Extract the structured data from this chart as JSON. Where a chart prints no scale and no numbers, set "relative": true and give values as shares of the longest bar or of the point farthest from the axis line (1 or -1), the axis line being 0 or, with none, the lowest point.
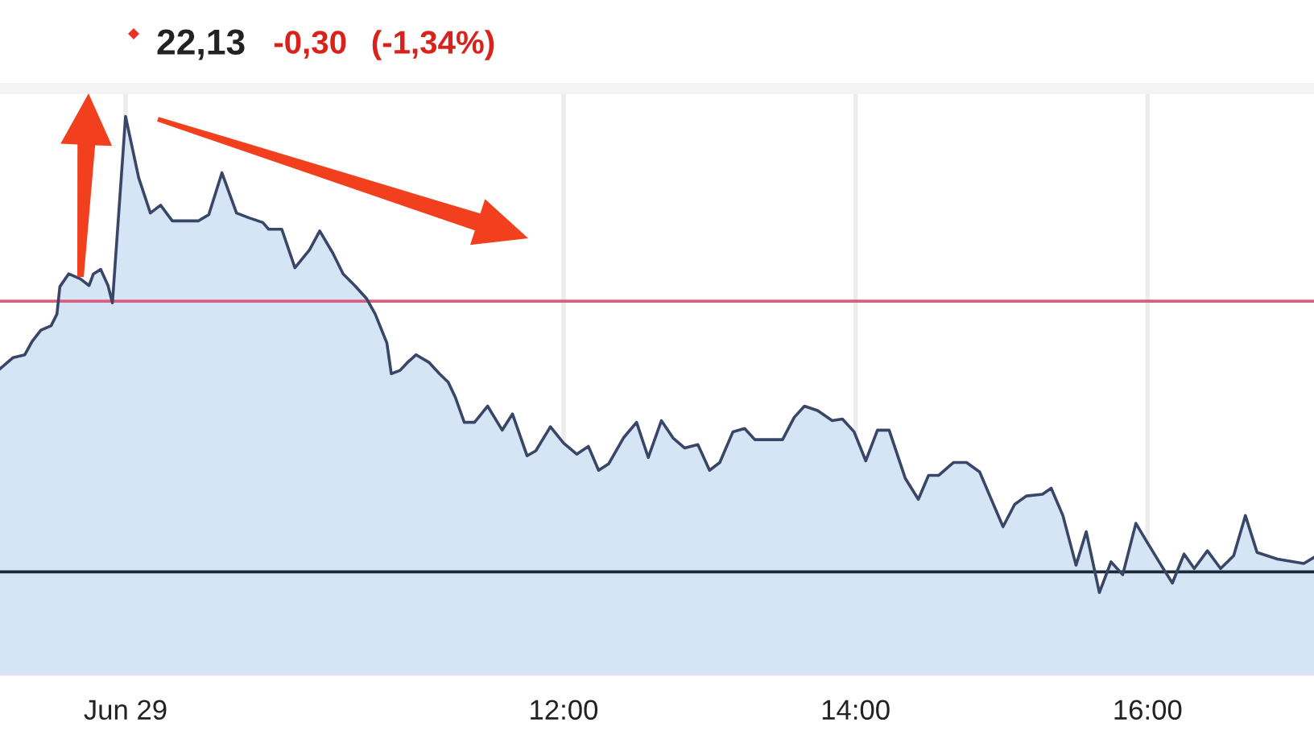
{
  "chart_data": {
    "type": "area",
    "title": "22,13",
    "annotations": [
      "-0,30",
      "(-1,34%)"
    ],
    "relative": true,
    "x": [
      8.14,
      8.23,
      8.31,
      8.36,
      8.42,
      8.49,
      8.53,
      8.55,
      8.61,
      8.69,
      8.75,
      8.78,
      8.83,
      8.88,
      8.91,
      9.0,
      9.09,
      9.17,
      9.24,
      9.32,
      9.41,
      9.5,
      9.57,
      9.66,
      9.76,
      9.85,
      9.94,
      9.98,
      10.07,
      10.16,
      10.26,
      10.33,
      10.42,
      10.49,
      10.57,
      10.65,
      10.71,
      10.79,
      10.82,
      10.88,
      10.93,
      10.99,
      11.08,
      11.15,
      11.21,
      11.26,
      11.32,
      11.39,
      11.48,
      11.58,
      11.65,
      11.75,
      11.81,
      11.91,
      12.0,
      12.09,
      12.17,
      12.24,
      12.31,
      12.41,
      12.5,
      12.58,
      12.67,
      12.75,
      12.83,
      12.92,
      13.0,
      13.07,
      13.16,
      13.24,
      13.31,
      13.41,
      13.5,
      13.58,
      13.65,
      13.74,
      13.84,
      13.91,
      13.99,
      14.07,
      14.15,
      14.23,
      14.34,
      14.43,
      14.5,
      14.57,
      14.67,
      14.76,
      14.85,
      14.92,
      15.01,
      15.09,
      15.17,
      15.28,
      15.34,
      15.42,
      15.51,
      15.58,
      15.67,
      15.75,
      15.83,
      15.92,
      16.0,
      16.1,
      16.17,
      16.25,
      16.32,
      16.41,
      16.5,
      16.59,
      16.67,
      16.75,
      16.89,
      17.07,
      17.14
    ],
    "series": [
      {
        "color": "#d5e5f5",
        "values": [
          0.548,
          0.568,
          0.573,
          0.597,
          0.617,
          0.625,
          0.646,
          0.695,
          0.718,
          0.709,
          0.697,
          0.718,
          0.726,
          0.697,
          0.666,
          1.0,
          0.89,
          0.827,
          0.841,
          0.813,
          0.813,
          0.813,
          0.824,
          0.899,
          0.827,
          0.818,
          0.81,
          0.798,
          0.798,
          0.729,
          0.761,
          0.795,
          0.755,
          0.718,
          0.697,
          0.674,
          0.646,
          0.594,
          0.539,
          0.545,
          0.559,
          0.573,
          0.559,
          0.539,
          0.524,
          0.496,
          0.452,
          0.452,
          0.481,
          0.438,
          0.467,
          0.392,
          0.401,
          0.444,
          0.415,
          0.395,
          0.409,
          0.366,
          0.378,
          0.424,
          0.452,
          0.389,
          0.455,
          0.424,
          0.406,
          0.412,
          0.366,
          0.38,
          0.435,
          0.441,
          0.421,
          0.421,
          0.421,
          0.461,
          0.481,
          0.473,
          0.455,
          0.458,
          0.435,
          0.383,
          0.438,
          0.438,
          0.352,
          0.314,
          0.357,
          0.357,
          0.38,
          0.38,
          0.363,
          0.32,
          0.265,
          0.305,
          0.32,
          0.323,
          0.334,
          0.285,
          0.196,
          0.256,
          0.147,
          0.202,
          0.179,
          0.271,
          0.236,
          0.193,
          0.164,
          0.216,
          0.19,
          0.222,
          0.19,
          0.213,
          0.285,
          0.219,
          0.207,
          0.199,
          0.21
        ]
      }
    ],
    "xlim": [
      8.14,
      17.14
    ],
    "xticks": [
      {
        "value": 9,
        "label": "Jun 29"
      },
      {
        "value": 12,
        "label": "12:00"
      },
      {
        "value": 14,
        "label": "14:00"
      },
      {
        "value": 16,
        "label": "16:00"
      }
    ],
    "grid": "x",
    "ref_lines": [
      {
        "axis": "y",
        "value": 0.669,
        "color": "#d6607e"
      },
      {
        "axis": "y",
        "value": 0.184,
        "color": "#1b2838"
      }
    ]
  }
}
